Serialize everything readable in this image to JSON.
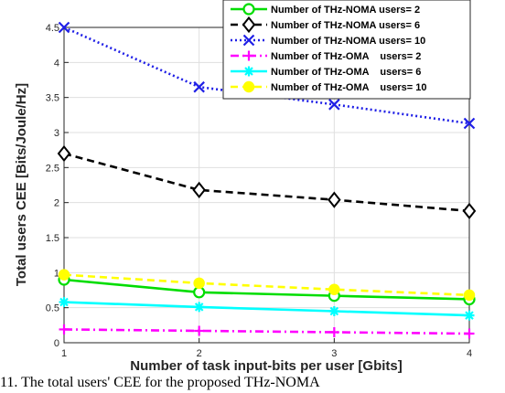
{
  "chart_data": {
    "type": "line",
    "xlabel": "Number of task input-bits per user [Gbits]",
    "ylabel": "Total users CEE [Bits/Joule/Hz]",
    "x": [
      1,
      2,
      3,
      4
    ],
    "xlim": [
      1,
      4
    ],
    "ylim": [
      0,
      4.5
    ],
    "xticks": [
      "1",
      "2",
      "3",
      "4"
    ],
    "yticks": [
      "0",
      "0.5",
      "1",
      "1.5",
      "2",
      "2.5",
      "3",
      "3.5",
      "4",
      "4.5"
    ],
    "grid": true,
    "legend_position": "top-right",
    "series": [
      {
        "name": "Number of THz-NOMA users= 2",
        "values": [
          0.9,
          0.72,
          0.67,
          0.62
        ],
        "color": "#00dd00",
        "dash": "solid",
        "marker": "circle"
      },
      {
        "name": "Number of THz-NOMA users= 6",
        "values": [
          2.7,
          2.18,
          2.04,
          1.88
        ],
        "color": "#000000",
        "dash": "dashed",
        "marker": "diamond"
      },
      {
        "name": "Number of THz-NOMA users= 10",
        "values": [
          4.5,
          3.65,
          3.4,
          3.13
        ],
        "color": "#1f1fe6",
        "dash": "dotted",
        "marker": "x"
      },
      {
        "name": "Number of THz-OMA    users= 2",
        "values": [
          0.19,
          0.17,
          0.15,
          0.13
        ],
        "color": "#ff00ff",
        "dash": "dashdot",
        "marker": "plus"
      },
      {
        "name": "Number of THz-OMA    users= 6",
        "values": [
          0.58,
          0.51,
          0.45,
          0.39
        ],
        "color": "#00ffff",
        "dash": "solid",
        "marker": "star"
      },
      {
        "name": "Number of THz-OMA    users= 10",
        "values": [
          0.97,
          0.85,
          0.76,
          0.68
        ],
        "color": "#ffff00",
        "dash": "dashed",
        "marker": "circle-filled"
      }
    ]
  },
  "caption": "11. The total users' CEE for the proposed THz-NOMA"
}
